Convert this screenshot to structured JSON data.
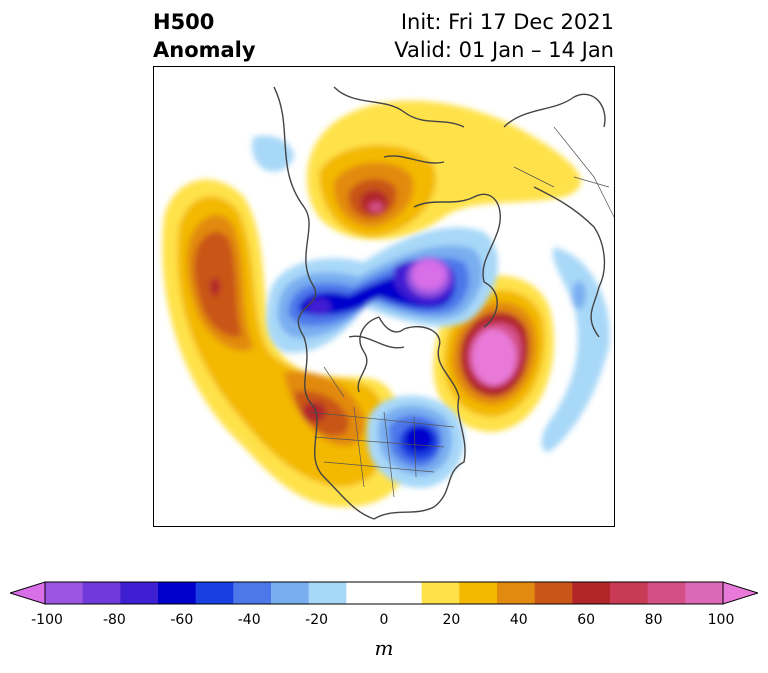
{
  "title": {
    "left_line1": "H500",
    "left_line2": "Anomaly",
    "right_line1": "Init: Fri 17 Dec 2021",
    "right_line2": "Valid: 01 Jan – 14 Jan"
  },
  "colorbar": {
    "unit": "m",
    "ticks": [
      "-100",
      "-80",
      "-60",
      "-40",
      "-20",
      "0",
      "20",
      "40",
      "60",
      "80",
      "100"
    ],
    "range": [
      -100,
      100
    ],
    "step": 10,
    "colors": [
      "#9b55e0",
      "#6f3ad9",
      "#3f1fd2",
      "#0000cc",
      "#1a3fe0",
      "#4d78ea",
      "#79aef0",
      "#a8d8f8",
      "#ffffff",
      "#ffffff",
      "#ffe24a",
      "#f3b800",
      "#e28a10",
      "#c95516",
      "#b2262a",
      "#c93a55",
      "#d44f86",
      "#dc69b8"
    ],
    "low_extend_color": "#d86ee8",
    "high_extend_color": "#e879d8"
  }
}
